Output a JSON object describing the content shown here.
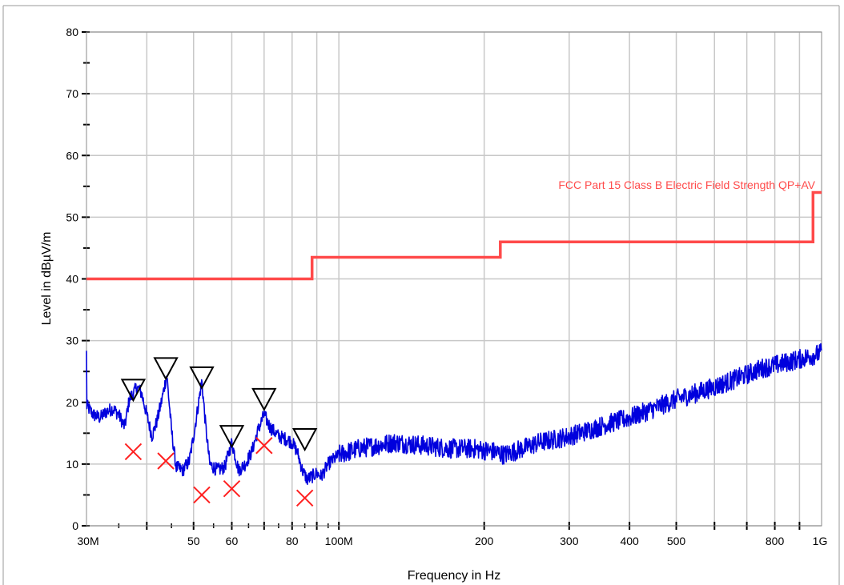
{
  "chart_data": {
    "type": "line",
    "title": "",
    "xlabel": "Frequency in Hz",
    "ylabel": "Level in dBµV/m",
    "x_scale": "log",
    "xlim": [
      30000000,
      1000000000
    ],
    "ylim": [
      0,
      80
    ],
    "grid": true,
    "colors": {
      "measurement": "#0000dd",
      "limit": "#ff4a4a",
      "qp_marker": "#ff2020",
      "peak_marker": "#000000"
    },
    "y_ticks": [
      "0",
      "10",
      "20",
      "30",
      "40",
      "50",
      "60",
      "70",
      "80"
    ],
    "x_tick_labels": [
      {
        "value": 30000000,
        "label": "30M"
      },
      {
        "value": 50000000,
        "label": "50"
      },
      {
        "value": 60000000,
        "label": "60"
      },
      {
        "value": 80000000,
        "label": "80"
      },
      {
        "value": 100000000,
        "label": "100M"
      },
      {
        "value": 200000000,
        "label": "200"
      },
      {
        "value": 300000000,
        "label": "300"
      },
      {
        "value": 400000000,
        "label": "400"
      },
      {
        "value": 500000000,
        "label": "500"
      },
      {
        "value": 800000000,
        "label": "800"
      },
      {
        "value": 1000000000,
        "label": "1G"
      }
    ],
    "limit": {
      "name": "FCC Part 15 Class B Electric Field Strength QP+AV",
      "steps": [
        {
          "f_start": 30000000,
          "f_end": 88000000,
          "level": 40.0
        },
        {
          "f_start": 88000000,
          "f_end": 216000000,
          "level": 43.5
        },
        {
          "f_start": 216000000,
          "f_end": 960000000,
          "level": 46.0
        },
        {
          "f_start": 960000000,
          "f_end": 1000000000,
          "level": 54.0
        }
      ]
    },
    "measurement": {
      "points": [
        [
          30.0,
          19.5
        ],
        [
          31.0,
          18.0
        ],
        [
          32.0,
          17.5
        ],
        [
          33.0,
          18.5
        ],
        [
          34.0,
          19.0
        ],
        [
          35.0,
          18.0
        ],
        [
          36.0,
          16.0
        ],
        [
          36.8,
          20.5
        ],
        [
          37.5,
          21.5
        ],
        [
          38.2,
          22.5
        ],
        [
          39.0,
          21.5
        ],
        [
          40.0,
          18.0
        ],
        [
          41.0,
          14.5
        ],
        [
          42.0,
          17.0
        ],
        [
          43.0,
          20.5
        ],
        [
          44.0,
          24.5
        ],
        [
          45.0,
          15.5
        ],
        [
          46.0,
          9.5
        ],
        [
          47.5,
          9.0
        ],
        [
          49.0,
          10.5
        ],
        [
          50.0,
          14.5
        ],
        [
          51.0,
          19.0
        ],
        [
          52.0,
          23.5
        ],
        [
          53.0,
          16.0
        ],
        [
          54.0,
          10.0
        ],
        [
          56.0,
          9.0
        ],
        [
          58.0,
          9.5
        ],
        [
          60.0,
          13.5
        ],
        [
          62.0,
          9.0
        ],
        [
          64.0,
          10.0
        ],
        [
          66.0,
          12.0
        ],
        [
          68.0,
          15.5
        ],
        [
          70.0,
          18.0
        ],
        [
          72.0,
          16.0
        ],
        [
          75.0,
          14.5
        ],
        [
          78.0,
          14.0
        ],
        [
          80.0,
          13.5
        ],
        [
          82.0,
          12.0
        ],
        [
          84.0,
          9.0
        ],
        [
          86.0,
          7.5
        ],
        [
          88.0,
          8.0
        ],
        [
          90.0,
          8.5
        ],
        [
          92.0,
          8.0
        ],
        [
          95.0,
          10.0
        ],
        [
          100.0,
          11.5
        ],
        [
          110.0,
          12.5
        ],
        [
          120.0,
          13.0
        ],
        [
          130.0,
          13.5
        ],
        [
          150.0,
          13.0
        ],
        [
          170.0,
          12.5
        ],
        [
          190.0,
          12.5
        ],
        [
          210.0,
          12.0
        ],
        [
          220.0,
          11.5
        ],
        [
          240.0,
          12.5
        ],
        [
          260.0,
          13.5
        ],
        [
          280.0,
          14.0
        ],
        [
          300.0,
          14.5
        ],
        [
          330.0,
          15.5
        ],
        [
          360.0,
          16.5
        ],
        [
          400.0,
          17.5
        ],
        [
          450.0,
          19.0
        ],
        [
          500.0,
          20.5
        ],
        [
          550.0,
          21.5
        ],
        [
          600.0,
          22.5
        ],
        [
          650.0,
          23.5
        ],
        [
          700.0,
          24.5
        ],
        [
          750.0,
          25.5
        ],
        [
          800.0,
          26.0
        ],
        [
          850.0,
          26.5
        ],
        [
          900.0,
          27.0
        ],
        [
          950.0,
          27.5
        ],
        [
          1000.0,
          28.0
        ]
      ]
    },
    "peak_markers": [
      {
        "f": 37.5,
        "level": 22.0
      },
      {
        "f": 43.8,
        "level": 25.5
      },
      {
        "f": 52.0,
        "level": 24.0
      },
      {
        "f": 60.0,
        "level": 14.5
      },
      {
        "f": 70.0,
        "level": 20.5
      },
      {
        "f": 85.0,
        "level": 14.0
      }
    ],
    "qp_markers": [
      {
        "f": 37.5,
        "level": 12.0
      },
      {
        "f": 43.8,
        "level": 10.5
      },
      {
        "f": 52.0,
        "level": 5.0
      },
      {
        "f": 60.0,
        "level": 6.0
      },
      {
        "f": 70.0,
        "level": 13.0
      },
      {
        "f": 85.0,
        "level": 4.5
      }
    ]
  }
}
